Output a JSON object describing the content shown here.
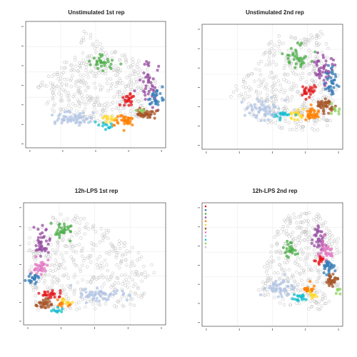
{
  "chart_data": [
    {
      "type": "scatter",
      "title": "Unstimulated 1st rep",
      "xlabel": "",
      "ylabel": "",
      "grid": true,
      "seed": 11,
      "background_cloud": {
        "color": "#c8c8c8",
        "count": 420,
        "region": [
          [
            0.06,
            0.55
          ],
          [
            0.2,
            0.38
          ],
          [
            0.38,
            0.25
          ],
          [
            0.42,
            0.05
          ],
          [
            0.6,
            0.2
          ],
          [
            0.82,
            0.3
          ],
          [
            0.98,
            0.5
          ],
          [
            0.9,
            0.75
          ],
          [
            0.7,
            0.82
          ],
          [
            0.4,
            0.78
          ],
          [
            0.2,
            0.72
          ]
        ]
      },
      "clusters": [
        {
          "color": "#4daf4a",
          "center": [
            0.55,
            0.32
          ],
          "spread": [
            0.07,
            0.05
          ],
          "count": 30
        },
        {
          "color": "#984ea3",
          "center": [
            0.88,
            0.48
          ],
          "spread": [
            0.06,
            0.12
          ],
          "count": 40
        },
        {
          "color": "#377eb8",
          "center": [
            0.93,
            0.62
          ],
          "spread": [
            0.04,
            0.06
          ],
          "count": 28
        },
        {
          "color": "#e41a1c",
          "center": [
            0.74,
            0.62
          ],
          "spread": [
            0.05,
            0.04
          ],
          "count": 22
        },
        {
          "color": "#a65628",
          "center": [
            0.86,
            0.73
          ],
          "spread": [
            0.06,
            0.03
          ],
          "count": 40
        },
        {
          "color": "#ff7f00",
          "center": [
            0.7,
            0.78
          ],
          "spread": [
            0.07,
            0.03
          ],
          "count": 35
        },
        {
          "color": "#ffd92f",
          "center": [
            0.6,
            0.77
          ],
          "spread": [
            0.04,
            0.03
          ],
          "count": 15
        },
        {
          "color": "#17becf",
          "center": [
            0.57,
            0.83
          ],
          "spread": [
            0.04,
            0.03
          ],
          "count": 12
        },
        {
          "color": "#b3c6e4",
          "center": [
            0.35,
            0.76
          ],
          "spread": [
            0.13,
            0.04
          ],
          "count": 60
        },
        {
          "color": "#8dd35f",
          "center": [
            0.82,
            0.7
          ],
          "spread": [
            0.03,
            0.02
          ],
          "count": 6
        }
      ]
    },
    {
      "type": "scatter",
      "title": "Unstimulated 2nd rep",
      "xlabel": "",
      "ylabel": "",
      "grid": true,
      "seed": 23,
      "background_cloud": {
        "color": "#c8c8c8",
        "count": 420,
        "region": [
          [
            0.18,
            0.55
          ],
          [
            0.35,
            0.38
          ],
          [
            0.5,
            0.1
          ],
          [
            0.85,
            0.05
          ],
          [
            0.98,
            0.45
          ],
          [
            0.9,
            0.85
          ],
          [
            0.6,
            0.85
          ],
          [
            0.35,
            0.75
          ]
        ]
      },
      "clusters": [
        {
          "color": "#4daf4a",
          "center": [
            0.67,
            0.25
          ],
          "spread": [
            0.07,
            0.07
          ],
          "count": 35
        },
        {
          "color": "#984ea3",
          "center": [
            0.85,
            0.35
          ],
          "spread": [
            0.06,
            0.12
          ],
          "count": 45
        },
        {
          "color": "#377eb8",
          "center": [
            0.92,
            0.45
          ],
          "spread": [
            0.04,
            0.12
          ],
          "count": 35
        },
        {
          "color": "#e41a1c",
          "center": [
            0.75,
            0.53
          ],
          "spread": [
            0.05,
            0.04
          ],
          "count": 25
        },
        {
          "color": "#a65628",
          "center": [
            0.88,
            0.66
          ],
          "spread": [
            0.05,
            0.05
          ],
          "count": 40
        },
        {
          "color": "#ff7f00",
          "center": [
            0.78,
            0.72
          ],
          "spread": [
            0.05,
            0.04
          ],
          "count": 35
        },
        {
          "color": "#ffd92f",
          "center": [
            0.67,
            0.72
          ],
          "spread": [
            0.04,
            0.04
          ],
          "count": 18
        },
        {
          "color": "#17becf",
          "center": [
            0.57,
            0.72
          ],
          "spread": [
            0.05,
            0.03
          ],
          "count": 18
        },
        {
          "color": "#b3c6e4",
          "center": [
            0.42,
            0.68
          ],
          "spread": [
            0.11,
            0.06
          ],
          "count": 55
        },
        {
          "color": "#8dd35f",
          "center": [
            0.95,
            0.68
          ],
          "spread": [
            0.03,
            0.04
          ],
          "count": 8
        }
      ]
    },
    {
      "type": "scatter",
      "title": "12h-LPS 1st rep",
      "xlabel": "",
      "ylabel": "",
      "grid": true,
      "seed": 37,
      "background_cloud": {
        "color": "#c8c8c8",
        "count": 420,
        "region": [
          [
            0.04,
            0.2
          ],
          [
            0.2,
            0.08
          ],
          [
            0.45,
            0.12
          ],
          [
            0.7,
            0.3
          ],
          [
            0.95,
            0.55
          ],
          [
            0.8,
            0.85
          ],
          [
            0.4,
            0.88
          ],
          [
            0.1,
            0.88
          ],
          [
            0.03,
            0.6
          ]
        ]
      },
      "clusters": [
        {
          "color": "#4daf4a",
          "center": [
            0.28,
            0.23
          ],
          "spread": [
            0.07,
            0.06
          ],
          "count": 30
        },
        {
          "color": "#984ea3",
          "center": [
            0.13,
            0.35
          ],
          "spread": [
            0.05,
            0.13
          ],
          "count": 40
        },
        {
          "color": "#e377c2",
          "center": [
            0.12,
            0.53
          ],
          "spread": [
            0.05,
            0.05
          ],
          "count": 28
        },
        {
          "color": "#377eb8",
          "center": [
            0.07,
            0.62
          ],
          "spread": [
            0.04,
            0.04
          ],
          "count": 20
        },
        {
          "color": "#e41a1c",
          "center": [
            0.2,
            0.75
          ],
          "spread": [
            0.06,
            0.03
          ],
          "count": 25
        },
        {
          "color": "#a65628",
          "center": [
            0.15,
            0.83
          ],
          "spread": [
            0.05,
            0.03
          ],
          "count": 30
        },
        {
          "color": "#ff7f00",
          "center": [
            0.27,
            0.82
          ],
          "spread": [
            0.04,
            0.03
          ],
          "count": 15
        },
        {
          "color": "#ffd92f",
          "center": [
            0.3,
            0.8
          ],
          "spread": [
            0.03,
            0.02
          ],
          "count": 10
        },
        {
          "color": "#17becf",
          "center": [
            0.23,
            0.88
          ],
          "spread": [
            0.04,
            0.02
          ],
          "count": 10
        },
        {
          "color": "#b3c6e4",
          "center": [
            0.53,
            0.75
          ],
          "spread": [
            0.17,
            0.05
          ],
          "count": 55
        }
      ]
    },
    {
      "type": "scatter",
      "title": "12h-LPS 2nd rep",
      "xlabel": "",
      "ylabel": "",
      "grid": true,
      "seed": 53,
      "background_cloud": {
        "color": "#c8c8c8",
        "count": 380,
        "region": [
          [
            0.42,
            0.6
          ],
          [
            0.5,
            0.3
          ],
          [
            0.6,
            0.1
          ],
          [
            0.8,
            0.05
          ],
          [
            0.98,
            0.3
          ],
          [
            0.97,
            0.7
          ],
          [
            0.85,
            0.88
          ],
          [
            0.6,
            0.85
          ],
          [
            0.4,
            0.72
          ]
        ]
      },
      "clusters": [
        {
          "color": "#4daf4a",
          "center": [
            0.63,
            0.38
          ],
          "spread": [
            0.05,
            0.04
          ],
          "count": 25
        },
        {
          "color": "#984ea3",
          "center": [
            0.84,
            0.3
          ],
          "spread": [
            0.04,
            0.1
          ],
          "count": 35
        },
        {
          "color": "#e377c2",
          "center": [
            0.88,
            0.38
          ],
          "spread": [
            0.04,
            0.08
          ],
          "count": 30
        },
        {
          "color": "#377eb8",
          "center": [
            0.9,
            0.52
          ],
          "spread": [
            0.04,
            0.05
          ],
          "count": 30
        },
        {
          "color": "#e41a1c",
          "center": [
            0.84,
            0.46
          ],
          "spread": [
            0.03,
            0.03
          ],
          "count": 15
        },
        {
          "color": "#a65628",
          "center": [
            0.92,
            0.63
          ],
          "spread": [
            0.04,
            0.04
          ],
          "count": 30
        },
        {
          "color": "#ff7f00",
          "center": [
            0.76,
            0.7
          ],
          "spread": [
            0.04,
            0.03
          ],
          "count": 22
        },
        {
          "color": "#ffd92f",
          "center": [
            0.79,
            0.74
          ],
          "spread": [
            0.03,
            0.02
          ],
          "count": 10
        },
        {
          "color": "#17becf",
          "center": [
            0.69,
            0.77
          ],
          "spread": [
            0.04,
            0.03
          ],
          "count": 18
        },
        {
          "color": "#b3c6e4",
          "center": [
            0.55,
            0.7
          ],
          "spread": [
            0.09,
            0.06
          ],
          "count": 50
        },
        {
          "color": "#8dd35f",
          "center": [
            0.97,
            0.7
          ],
          "spread": [
            0.02,
            0.03
          ],
          "count": 6
        }
      ],
      "legend": {
        "placement": "top-left",
        "colors": [
          "#e41a1c",
          "#377eb8",
          "#4daf4a",
          "#984ea3",
          "#ff7f00",
          "#ffd92f",
          "#a65628",
          "#e377c2",
          "#b3c6e4",
          "#17becf",
          "#8dd35f",
          "#c8c8c8"
        ]
      }
    }
  ]
}
